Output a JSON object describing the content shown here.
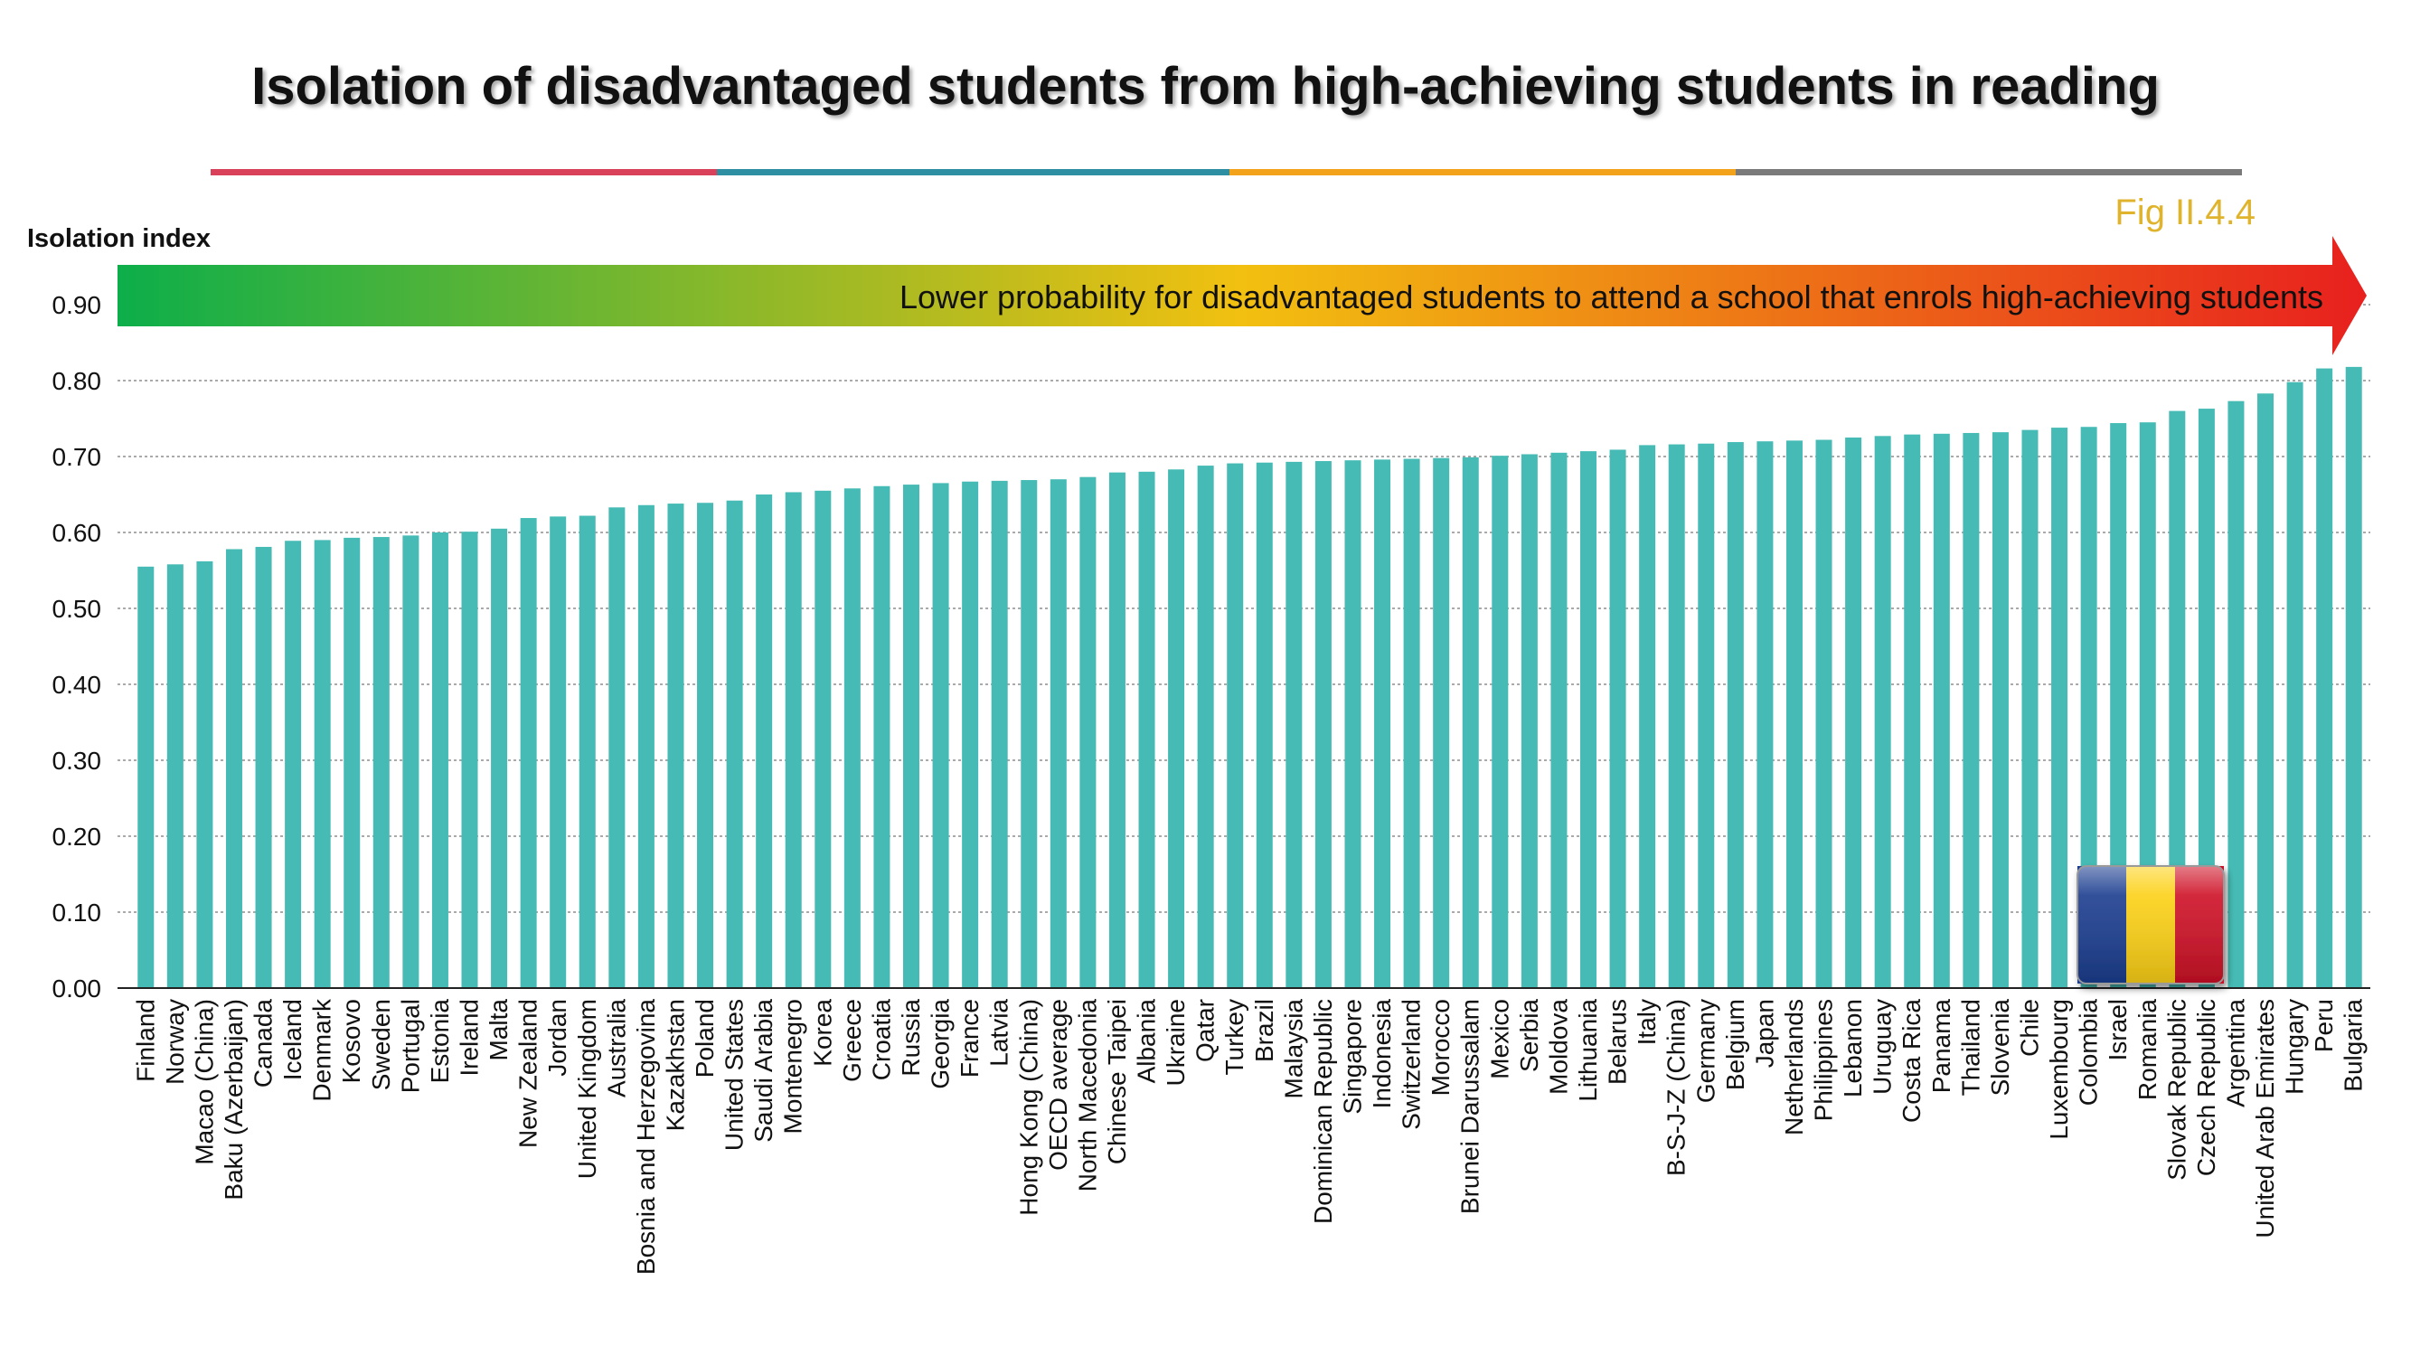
{
  "title": "Isolation of disadvantaged students from high-achieving students in reading",
  "fig_label": "Fig II.4.4",
  "arrow_text": "Lower probability for disadvantaged students to attend a school that enrols high-achieving students",
  "colors": {
    "bar": "#46bbb5",
    "divider": [
      "#d9405a",
      "#2e8fa3",
      "#f2a31b",
      "#7a7a7a"
    ],
    "arrow_start": "#0dae4a",
    "arrow_mid": "#f2c010",
    "arrow_end": "#e8201e",
    "fig_label": "#e0b32c",
    "flag": [
      "#1b3d8f",
      "#fcd116",
      "#ce1126"
    ]
  },
  "chart_data": {
    "type": "bar",
    "title": "Isolation of disadvantaged students from high-achieving students in reading",
    "ylabel": "Isolation index",
    "xlabel": "",
    "ylim": [
      0,
      0.9
    ],
    "yticks": [
      "0.00",
      "0.10",
      "0.20",
      "0.30",
      "0.40",
      "0.50",
      "0.60",
      "0.70",
      "0.80",
      "0.90"
    ],
    "grid": true,
    "categories": [
      "Finland",
      "Norway",
      "Macao (China)",
      "Baku (Azerbaijan)",
      "Canada",
      "Iceland",
      "Denmark",
      "Kosovo",
      "Sweden",
      "Portugal",
      "Estonia",
      "Ireland",
      "Malta",
      "New Zealand",
      "Jordan",
      "United Kingdom",
      "Australia",
      "Bosnia and Herzegovina",
      "Kazakhstan",
      "Poland",
      "United States",
      "Saudi Arabia",
      "Montenegro",
      "Korea",
      "Greece",
      "Croatia",
      "Russia",
      "Georgia",
      "France",
      "Latvia",
      "Hong Kong (China)",
      "OECD average",
      "North Macedonia",
      "Chinese Taipei",
      "Albania",
      "Ukraine",
      "Qatar",
      "Turkey",
      "Brazil",
      "Malaysia",
      "Dominican Republic",
      "Singapore",
      "Indonesia",
      "Switzerland",
      "Morocco",
      "Brunei Darussalam",
      "Mexico",
      "Serbia",
      "Moldova",
      "Lithuania",
      "Belarus",
      "Italy",
      "B-S-J-Z (China)",
      "Germany",
      "Belgium",
      "Japan",
      "Netherlands",
      "Philippines",
      "Lebanon",
      "Uruguay",
      "Costa Rica",
      "Panama",
      "Thailand",
      "Slovenia",
      "Chile",
      "Luxembourg",
      "Colombia",
      "Israel",
      "Romania",
      "Slovak Republic",
      "Czech Republic",
      "Argentina",
      "United Arab Emirates",
      "Hungary",
      "Peru",
      "Bulgaria"
    ],
    "values": [
      0.555,
      0.558,
      0.562,
      0.578,
      0.581,
      0.589,
      0.59,
      0.593,
      0.594,
      0.596,
      0.6,
      0.601,
      0.605,
      0.619,
      0.621,
      0.622,
      0.633,
      0.636,
      0.638,
      0.639,
      0.642,
      0.65,
      0.653,
      0.655,
      0.658,
      0.661,
      0.663,
      0.665,
      0.667,
      0.668,
      0.669,
      0.67,
      0.673,
      0.679,
      0.68,
      0.683,
      0.688,
      0.691,
      0.692,
      0.693,
      0.694,
      0.695,
      0.696,
      0.697,
      0.698,
      0.699,
      0.701,
      0.703,
      0.705,
      0.707,
      0.709,
      0.715,
      0.716,
      0.717,
      0.719,
      0.72,
      0.721,
      0.722,
      0.725,
      0.727,
      0.729,
      0.73,
      0.731,
      0.732,
      0.735,
      0.738,
      0.739,
      0.744,
      0.745,
      0.76,
      0.763,
      0.773,
      0.783,
      0.798,
      0.816,
      0.818
    ],
    "highlight": {
      "category": "Romania",
      "marker": "flag-icon"
    }
  }
}
